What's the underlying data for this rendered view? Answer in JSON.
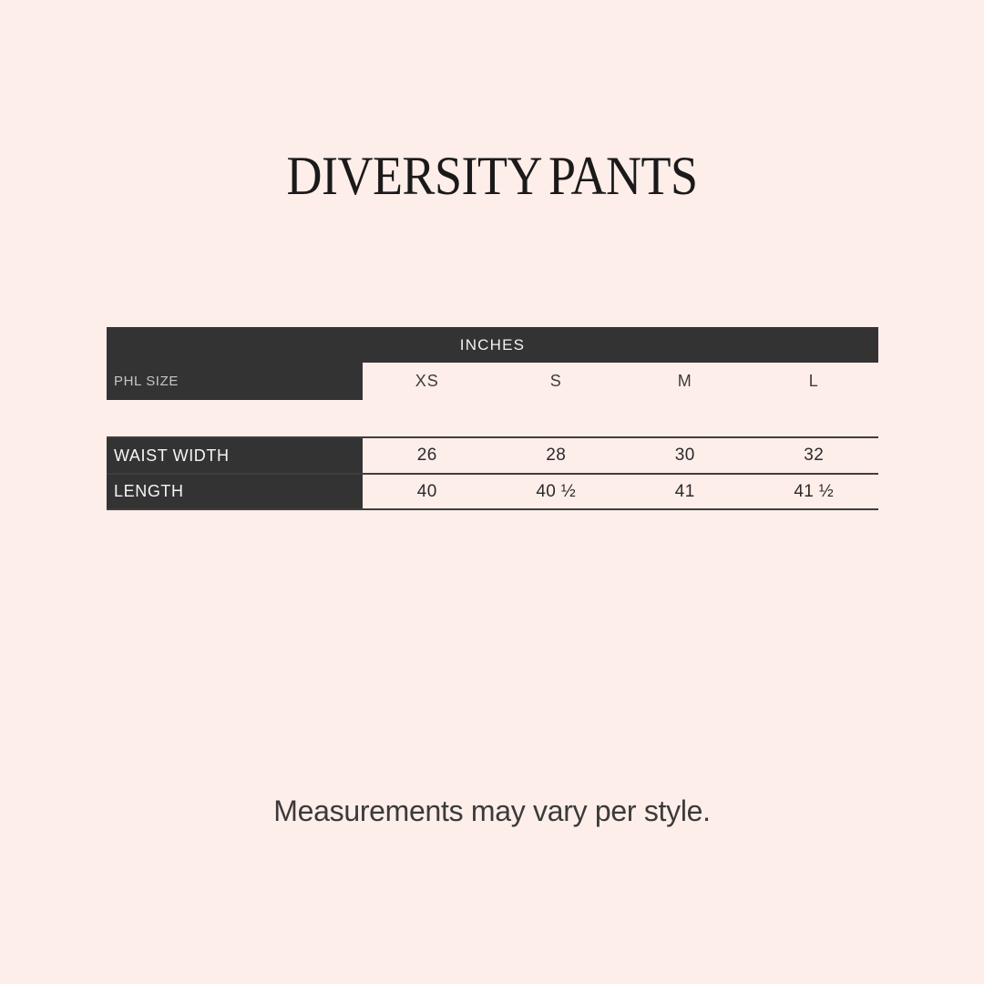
{
  "page": {
    "title": "DIVERSITY PANTS",
    "footnote": "Measurements may vary per style.",
    "background_color": "#fdeeea"
  },
  "colors": {
    "header_dark": "#333333",
    "row_line": "#3e3e3e",
    "header_text": "#f4f2f1",
    "muted_label_text": "#c9c5c3",
    "body_text": "#2c2b2a",
    "title_text": "#1b1a1a"
  },
  "table": {
    "unit_header": "INCHES",
    "size_label": "PHL SIZE",
    "sizes": [
      "XS",
      "S",
      "M",
      "L"
    ],
    "rows": [
      {
        "label": "WAIST WIDTH",
        "values": [
          "26",
          "28",
          "30",
          "32"
        ]
      },
      {
        "label": "LENGTH",
        "values": [
          "40",
          "40 ½",
          "41",
          "41 ½"
        ]
      }
    ]
  },
  "chart_data": {
    "type": "table",
    "title": "DIVERSITY PANTS",
    "unit": "INCHES",
    "columns": [
      "PHL SIZE",
      "XS",
      "S",
      "M",
      "L"
    ],
    "rows": [
      [
        "WAIST WIDTH",
        "26",
        "28",
        "30",
        "32"
      ],
      [
        "LENGTH",
        "40",
        "40 ½",
        "41",
        "41 ½"
      ]
    ],
    "note": "Measurements may vary per style."
  }
}
